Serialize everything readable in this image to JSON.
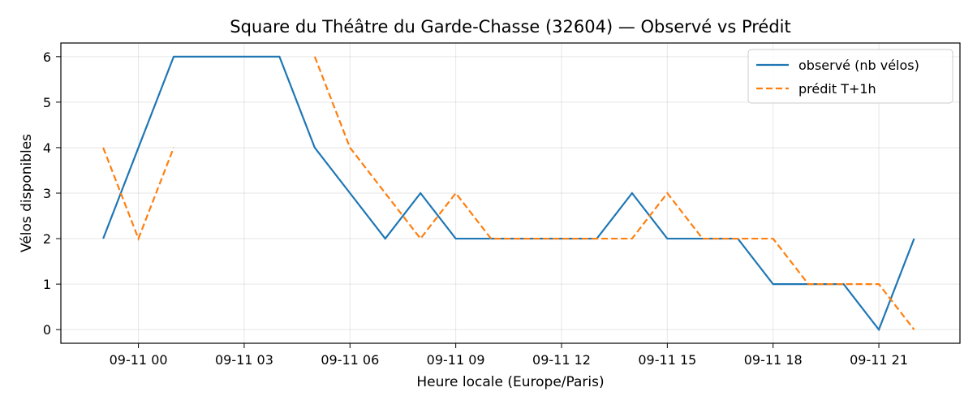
{
  "chart_data": {
    "type": "line",
    "title": "Square du Théâtre du Garde-Chasse (32604) — Observé vs Prédit",
    "xlabel": "Heure locale (Europe/Paris)",
    "ylabel": "Vélos disponibles",
    "x_ticks": [
      "09-11 00",
      "09-11 03",
      "09-11 06",
      "09-11 09",
      "09-11 12",
      "09-11 15",
      "09-11 18",
      "09-11 21"
    ],
    "x_tick_hours": [
      0,
      3,
      6,
      9,
      12,
      15,
      18,
      21
    ],
    "xlim_hours": [
      -2.2,
      23.3
    ],
    "y_ticks": [
      "0",
      "1",
      "2",
      "3",
      "4",
      "5",
      "6"
    ],
    "ylim": [
      -0.3,
      6.3
    ],
    "grid": true,
    "legend_position": "top-right",
    "series": [
      {
        "name": "observé (nb vélos)",
        "color": "#1f77b4",
        "dash": "solid",
        "x_hours": [
          -1,
          0,
          1,
          2,
          3,
          4,
          5,
          6,
          7,
          8,
          9,
          10,
          11,
          12,
          13,
          14,
          15,
          16,
          17,
          18,
          19,
          20,
          21,
          22
        ],
        "values": [
          2,
          4,
          6,
          6,
          6,
          6,
          4,
          3,
          2,
          3,
          2,
          2,
          2,
          2,
          2,
          3,
          2,
          2,
          2,
          1,
          1,
          1,
          0,
          2
        ]
      },
      {
        "name": "prédit T+1h",
        "color": "#ff7f0e",
        "dash": "dashed",
        "x_hours": [
          -1,
          0,
          1,
          2,
          3,
          4,
          5,
          6,
          7,
          8,
          9,
          10,
          11,
          12,
          13,
          14,
          15,
          16,
          17,
          18,
          19,
          20,
          21,
          22
        ],
        "values": [
          4,
          2,
          4,
          null,
          null,
          null,
          6,
          4,
          3,
          2,
          3,
          2,
          2,
          2,
          2,
          2,
          3,
          2,
          2,
          2,
          1,
          1,
          1,
          0
        ]
      }
    ]
  }
}
